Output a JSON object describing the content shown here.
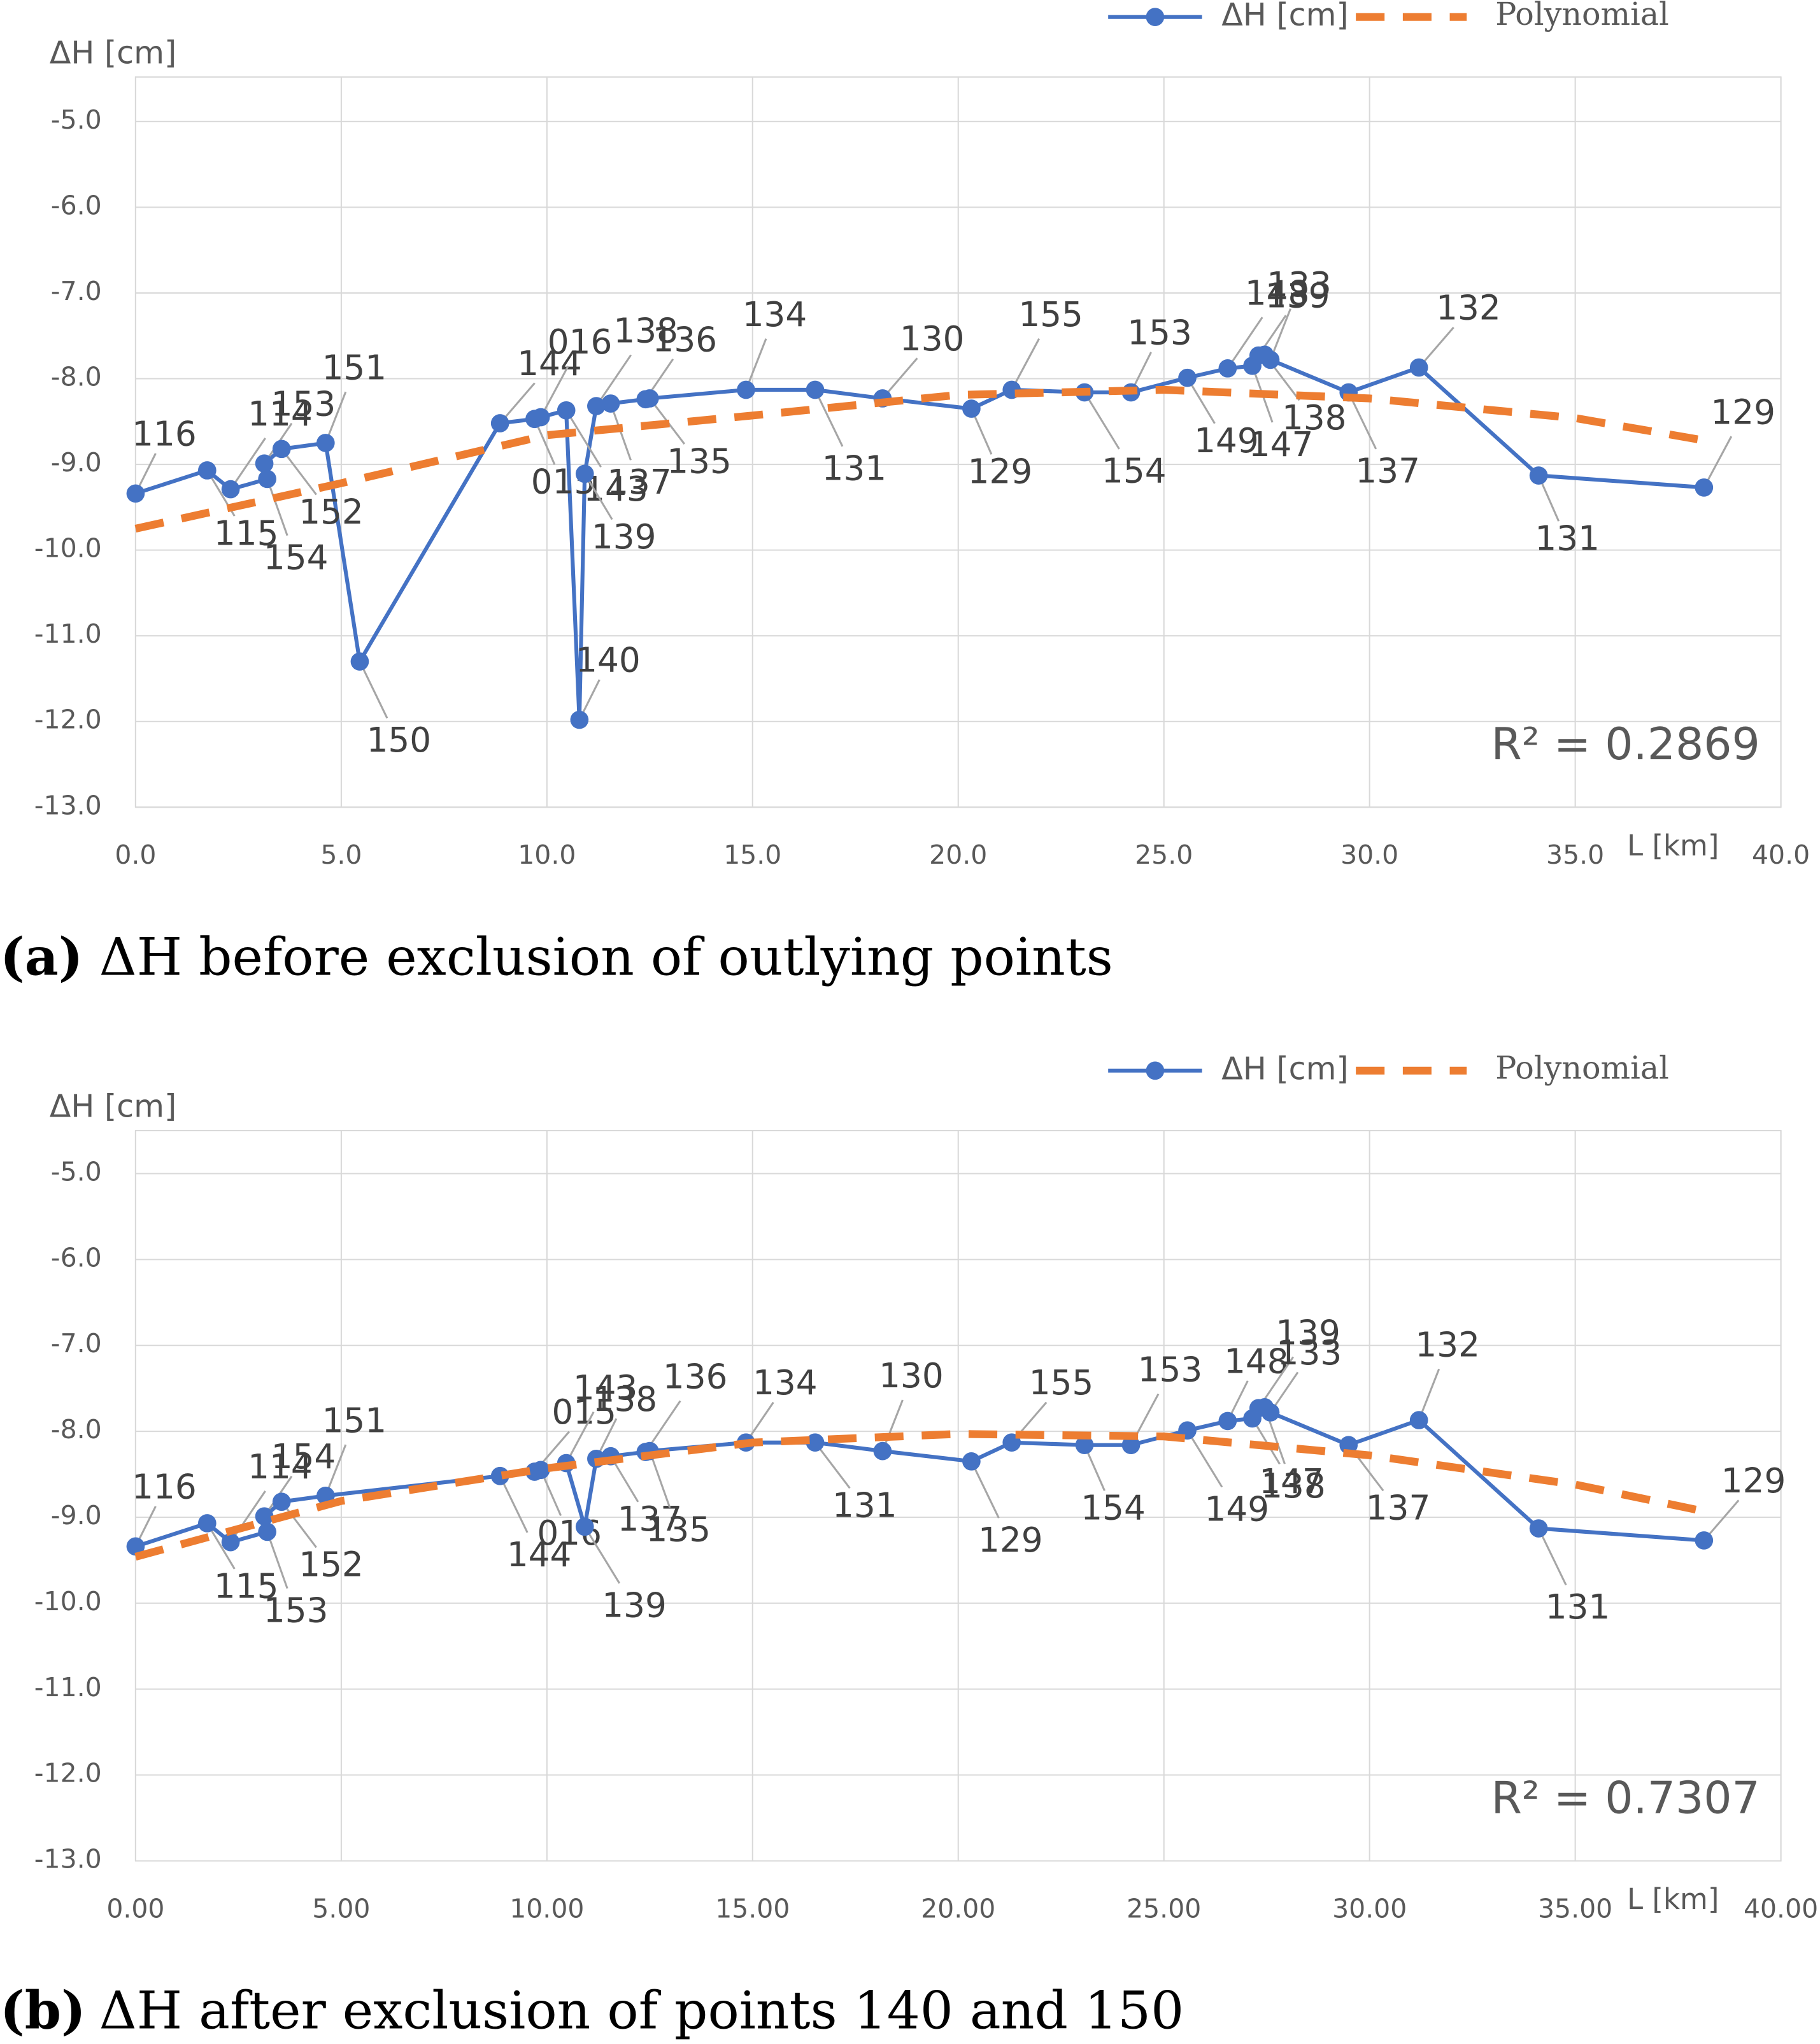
{
  "chart_data": [
    {
      "type": "line",
      "y_label": "ΔH [cm]",
      "x_label": "L [km]",
      "annotation": "R² = 0.2869",
      "caption_label": "(a)",
      "caption": "ΔH before exclusion of outlying points",
      "xlim": [
        0,
        40
      ],
      "ylim": [
        -13,
        -4.48
      ],
      "grid": true,
      "xticks": [
        {
          "value": 0,
          "label": "0.0"
        },
        {
          "value": 5,
          "label": "5.0"
        },
        {
          "value": 10,
          "label": "10.0"
        },
        {
          "value": 15,
          "label": "15.0"
        },
        {
          "value": 20,
          "label": "20.0"
        },
        {
          "value": 25,
          "label": "25.0"
        },
        {
          "value": 30,
          "label": "30.0"
        },
        {
          "value": 35,
          "label": "35.0"
        },
        {
          "value": 40,
          "label": "40.0"
        }
      ],
      "yticks": [
        {
          "value": -5,
          "label": "-5.0"
        },
        {
          "value": -6,
          "label": "-6.0"
        },
        {
          "value": -7,
          "label": "-7.0"
        },
        {
          "value": -8,
          "label": "-8.0"
        },
        {
          "value": -9,
          "label": "-9.0"
        },
        {
          "value": -10,
          "label": "-10.0"
        },
        {
          "value": -11,
          "label": "-11.0"
        },
        {
          "value": -12,
          "label": "-12.0"
        },
        {
          "value": -13,
          "label": "-13.0"
        }
      ],
      "series": [
        {
          "name": "ΔH [cm]",
          "color": "#4472c4",
          "x": [
            0,
            1.74,
            2.31,
            3.2,
            3.13,
            3.55,
            4.62,
            5.45,
            8.86,
            9.7,
            9.85,
            10.47,
            10.79,
            10.92,
            11.2,
            11.55,
            12.4,
            12.5,
            14.84,
            16.52,
            18.16,
            20.32,
            21.3,
            23.07,
            24.2,
            25.57,
            26.55,
            27.15,
            27.3,
            27.45,
            27.59,
            29.49,
            31.2,
            34.11,
            38.13
          ],
          "values": [
            -9.34,
            -9.07,
            -9.29,
            -9.17,
            -8.99,
            -8.82,
            -8.75,
            -11.3,
            -8.52,
            -8.47,
            -8.45,
            -8.37,
            -11.98,
            -9.11,
            -8.32,
            -8.29,
            -8.24,
            -8.23,
            -8.13,
            -8.13,
            -8.23,
            -8.35,
            -8.13,
            -8.16,
            -8.16,
            -7.99,
            -7.88,
            -7.85,
            -7.73,
            -7.72,
            -7.78,
            -8.16,
            -7.87,
            -9.13,
            -9.27
          ],
          "point_labels": [
            "116",
            "115",
            "114",
            "154",
            "153",
            "152",
            "151",
            "150",
            "144",
            "015",
            "016",
            "143",
            "140",
            "139",
            "138",
            "137",
            "136",
            "135",
            "134",
            "131",
            "130",
            "129",
            "155",
            "154",
            "153",
            "149",
            "148",
            "147",
            "139",
            "138",
            "133",
            "137",
            "132",
            "131",
            "129"
          ]
        },
        {
          "name": "Polynomial",
          "color": "#ed7d31",
          "dashed": true,
          "x": [
            0,
            5,
            10,
            15,
            20,
            25,
            30,
            35,
            38.13
          ],
          "values": [
            -9.75,
            -9.22,
            -8.66,
            -8.43,
            -8.19,
            -8.13,
            -8.23,
            -8.46,
            -8.72
          ]
        }
      ]
    },
    {
      "type": "line",
      "y_label": "ΔH [cm]",
      "x_label": "L [km]",
      "annotation": "R² = 0.7307",
      "caption_label": "(b)",
      "caption": "ΔH after exclusion of points 140 and 150",
      "xlim": [
        0,
        40
      ],
      "ylim": [
        -13,
        -4.5
      ],
      "grid": true,
      "xticks": [
        {
          "value": 0,
          "label": "0.00"
        },
        {
          "value": 5,
          "label": "5.00"
        },
        {
          "value": 10,
          "label": "10.00"
        },
        {
          "value": 15,
          "label": "15.00"
        },
        {
          "value": 20,
          "label": "20.00"
        },
        {
          "value": 25,
          "label": "25.00"
        },
        {
          "value": 30,
          "label": "30.00"
        },
        {
          "value": 35,
          "label": "35.00"
        },
        {
          "value": 40,
          "label": "40.00"
        }
      ],
      "yticks": [
        {
          "value": -5,
          "label": "-5.0"
        },
        {
          "value": -6,
          "label": "-6.0"
        },
        {
          "value": -7,
          "label": "-7.0"
        },
        {
          "value": -8,
          "label": "-8.0"
        },
        {
          "value": -9,
          "label": "-9.0"
        },
        {
          "value": -10,
          "label": "-10.0"
        },
        {
          "value": -11,
          "label": "-11.0"
        },
        {
          "value": -12,
          "label": "-12.0"
        },
        {
          "value": -13,
          "label": "-13.0"
        }
      ],
      "series": [
        {
          "name": "ΔH [cm]",
          "color": "#4472c4",
          "x": [
            0,
            1.74,
            2.31,
            3.2,
            3.13,
            3.55,
            4.62,
            8.86,
            9.7,
            9.85,
            10.47,
            10.92,
            11.2,
            11.55,
            12.4,
            12.5,
            14.84,
            16.52,
            18.16,
            20.32,
            21.3,
            23.07,
            24.2,
            25.57,
            26.55,
            27.15,
            27.3,
            27.45,
            27.59,
            29.49,
            31.2,
            34.11,
            38.13
          ],
          "values": [
            -9.34,
            -9.07,
            -9.29,
            -9.17,
            -8.99,
            -8.82,
            -8.75,
            -8.52,
            -8.47,
            -8.45,
            -8.37,
            -9.11,
            -8.32,
            -8.29,
            -8.24,
            -8.23,
            -8.13,
            -8.13,
            -8.23,
            -8.35,
            -8.13,
            -8.16,
            -8.16,
            -7.99,
            -7.88,
            -7.85,
            -7.73,
            -7.72,
            -7.78,
            -8.16,
            -7.87,
            -9.13,
            -9.27
          ],
          "point_labels": [
            "116",
            "115",
            "114",
            "153",
            "154",
            "152",
            "151",
            "144",
            "015",
            "016",
            "143",
            "139",
            "138",
            "137",
            "136",
            "135",
            "134",
            "131",
            "130",
            "129",
            "155",
            "154",
            "153",
            "149",
            "148",
            "147",
            "139",
            "138",
            "133",
            "137",
            "132",
            "131",
            "129"
          ]
        },
        {
          "name": "Polynomial",
          "color": "#ed7d31",
          "dashed": true,
          "x": [
            0,
            5,
            10,
            15,
            20,
            25,
            30,
            35,
            38.13
          ],
          "values": [
            -9.46,
            -8.81,
            -8.43,
            -8.13,
            -8.03,
            -8.06,
            -8.28,
            -8.62,
            -8.93
          ]
        }
      ]
    }
  ]
}
